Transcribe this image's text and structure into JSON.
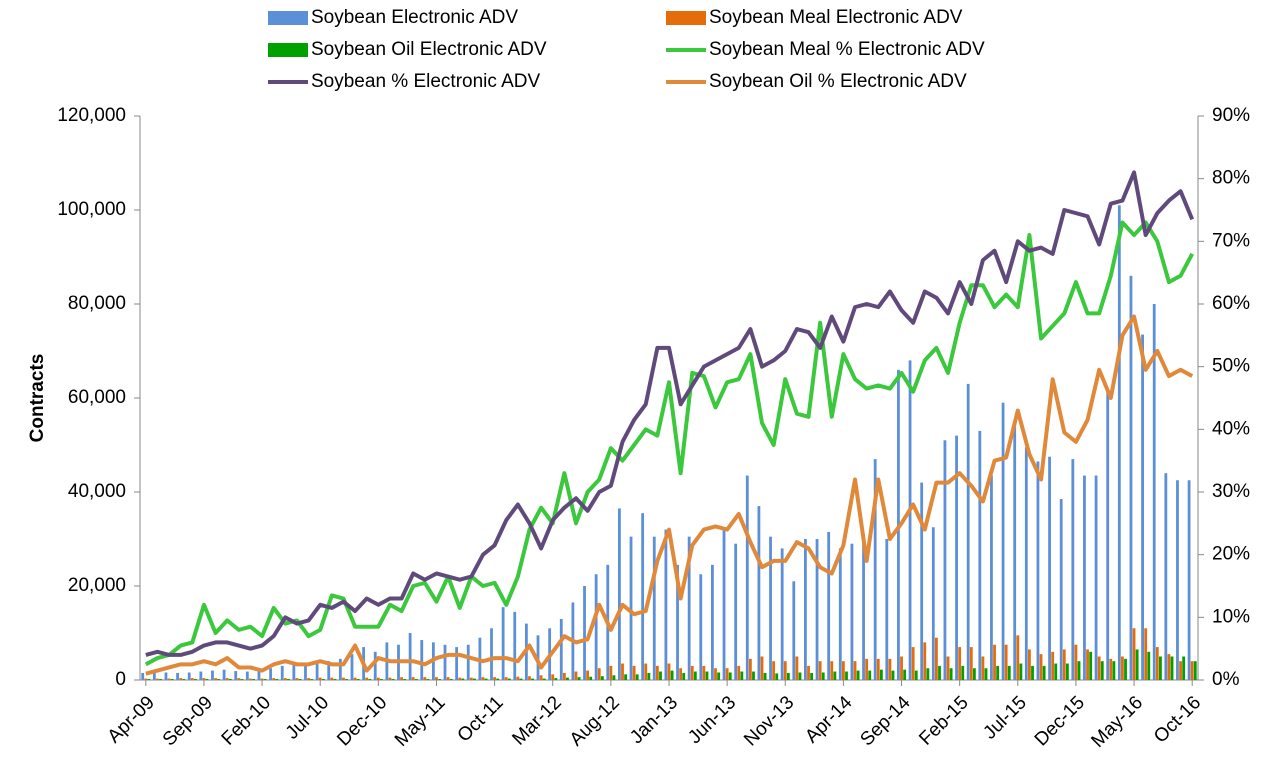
{
  "chart_data": {
    "type": "bar",
    "y_label": "Contracts",
    "categories": [
      "Apr-09",
      null,
      null,
      null,
      null,
      "Sep-09",
      null,
      null,
      null,
      null,
      "Feb-10",
      null,
      null,
      null,
      null,
      "Jul-10",
      null,
      null,
      null,
      null,
      "Dec-10",
      null,
      null,
      null,
      null,
      "May-11",
      null,
      null,
      null,
      null,
      "Oct-11",
      null,
      null,
      null,
      null,
      "Mar-12",
      null,
      null,
      null,
      null,
      "Aug-12",
      null,
      null,
      null,
      null,
      "Jan-13",
      null,
      null,
      null,
      null,
      "Jun-13",
      null,
      null,
      null,
      null,
      "Nov-13",
      null,
      null,
      null,
      null,
      "Apr-14",
      null,
      null,
      null,
      null,
      "Sep-14",
      null,
      null,
      null,
      null,
      "Feb-15",
      null,
      null,
      null,
      null,
      "Jul-15",
      null,
      null,
      null,
      null,
      "Dec-15",
      null,
      null,
      null,
      null,
      "May-16",
      null,
      null,
      null,
      null,
      "Oct-16"
    ],
    "ylim": [
      0,
      120000
    ],
    "yticks": [
      0,
      {
        "value": 20000,
        "label": "20,000"
      },
      {
        "value": 40000,
        "label": "40,000"
      },
      {
        "value": 60000,
        "label": "60,000"
      },
      {
        "value": 80000,
        "label": "80,000"
      },
      {
        "value": 100000,
        "label": "100,000"
      },
      {
        "value": 120000,
        "label": "120,000"
      }
    ],
    "y2lim": [
      0,
      90
    ],
    "y2ticks": [
      {
        "value": 0,
        "label": "0%"
      },
      {
        "value": 10,
        "label": "10%"
      },
      {
        "value": 20,
        "label": "20%"
      },
      {
        "value": 30,
        "label": "30%"
      },
      {
        "value": 40,
        "label": "40%"
      },
      {
        "value": 50,
        "label": "50%"
      },
      {
        "value": 60,
        "label": "60%"
      },
      {
        "value": 70,
        "label": "70%"
      },
      {
        "value": 80,
        "label": "80%"
      },
      {
        "value": 90,
        "label": "90%"
      }
    ],
    "series": [
      {
        "name": "Soybean Electronic ADV",
        "type": "bar",
        "color": "#5b8fd8",
        "values": [
          1500,
          1700,
          1600,
          1500,
          1600,
          1800,
          2000,
          2200,
          1900,
          1800,
          2000,
          2500,
          3000,
          3500,
          3000,
          3800,
          4000,
          4500,
          5500,
          7000,
          6000,
          8000,
          7500,
          10000,
          8500,
          8000,
          7500,
          7000,
          7500,
          9000,
          11000,
          15500,
          14500,
          12000,
          9500,
          11000,
          13000,
          16500,
          20000,
          22500,
          24500,
          36500,
          30500,
          35500,
          30500,
          32000,
          24500,
          30500,
          22500,
          24500,
          32000,
          29000,
          43500,
          37000,
          30500,
          28000,
          21000,
          30000,
          30000,
          31500,
          28000,
          29000,
          31000,
          47000,
          30000,
          66000,
          68000,
          42000,
          32500,
          51000,
          52000,
          63000,
          53000,
          43500,
          59000,
          54500,
          49500,
          46500,
          47500,
          38500,
          47000,
          43500,
          43500,
          62000,
          101000,
          86000,
          73500,
          80000,
          44000,
          42500,
          42500
        ]
      },
      {
        "name": "Soybean Meal Electronic ADV",
        "type": "bar",
        "color": "#e46c0a",
        "values": [
          300,
          300,
          300,
          400,
          400,
          400,
          400,
          400,
          400,
          300,
          300,
          400,
          400,
          400,
          400,
          500,
          500,
          500,
          500,
          500,
          500,
          500,
          600,
          600,
          600,
          600,
          600,
          500,
          500,
          600,
          600,
          600,
          700,
          800,
          1000,
          1200,
          1500,
          1800,
          2000,
          2500,
          3000,
          3500,
          3000,
          3500,
          3000,
          3500,
          2500,
          3000,
          3000,
          2500,
          2500,
          3000,
          4500,
          5000,
          4000,
          4000,
          5000,
          3000,
          4000,
          4000,
          4000,
          4000,
          4500,
          4500,
          4500,
          5000,
          7000,
          8000,
          9000,
          5000,
          7000,
          7000,
          5000,
          7500,
          7500,
          9500,
          6500,
          5500,
          6000,
          6500,
          7500,
          6500,
          5000,
          4500,
          5000,
          11000,
          11000,
          7000,
          5500,
          4000,
          4000
        ]
      },
      {
        "name": "Soybean Oil Electronic ADV",
        "type": "bar",
        "color": "#00a000",
        "values": [
          200,
          200,
          200,
          200,
          200,
          200,
          200,
          200,
          200,
          200,
          200,
          200,
          200,
          200,
          200,
          200,
          200,
          200,
          200,
          200,
          200,
          200,
          200,
          200,
          200,
          200,
          200,
          300,
          300,
          300,
          300,
          300,
          300,
          300,
          300,
          400,
          500,
          600,
          700,
          800,
          1000,
          1200,
          1200,
          1500,
          1800,
          2000,
          1500,
          1800,
          1800,
          1600,
          1600,
          1800,
          1800,
          1500,
          1400,
          1500,
          1600,
          1500,
          1600,
          1800,
          1800,
          2000,
          2000,
          2200,
          2000,
          2200,
          2000,
          2500,
          3000,
          2500,
          3000,
          2500,
          2500,
          3000,
          3000,
          3500,
          3000,
          3000,
          3500,
          3500,
          4000,
          6000,
          4000,
          4000,
          4500,
          6500,
          6000,
          5000,
          5000,
          5000,
          4000
        ]
      },
      {
        "name": "Soybean Meal % Electronic ADV",
        "type": "line",
        "axis": "y2",
        "color": "#3cc83c",
        "values": [
          2.5,
          3.5,
          4,
          5.5,
          6,
          12,
          7.5,
          9.5,
          8,
          8.5,
          7,
          11.5,
          9,
          9.5,
          7,
          8,
          13.5,
          13,
          8.5,
          8.5,
          8.5,
          12,
          11,
          15,
          15.5,
          12.5,
          16.5,
          11.5,
          16.5,
          15,
          15.5,
          12,
          16.5,
          24,
          27.5,
          25,
          33,
          25,
          30,
          32,
          37,
          35,
          37.5,
          40,
          39,
          47.5,
          33,
          49,
          48.5,
          43.5,
          47.5,
          48,
          52,
          41,
          37.5,
          48,
          42.5,
          42,
          57,
          42,
          52,
          48,
          46.5,
          47,
          46.5,
          49,
          46,
          51,
          53,
          49,
          57,
          63,
          63,
          59.5,
          61.5,
          59.5,
          71,
          54.5,
          56.5,
          58.5,
          63.5,
          58.5,
          58.5,
          64.5,
          73,
          71,
          73,
          70,
          63.5,
          64.5,
          68
        ]
      },
      {
        "name": "Soybean % Electronic ADV",
        "type": "line",
        "axis": "y2",
        "color": "#604a7b",
        "values": [
          4,
          4.5,
          4,
          4,
          4.5,
          5.5,
          6,
          6,
          5.5,
          5,
          5.5,
          7,
          10,
          9,
          9.5,
          12,
          11.5,
          12.5,
          11,
          13,
          12,
          13,
          13,
          17,
          16,
          17,
          16.5,
          16,
          16.5,
          20,
          21.5,
          25.5,
          28,
          25,
          21,
          25.5,
          27.5,
          29,
          27,
          30,
          31,
          38,
          41.5,
          44,
          53,
          53,
          44,
          47,
          50,
          51,
          52,
          53,
          56,
          50,
          51,
          52.5,
          56,
          55.5,
          53,
          58,
          54,
          59.5,
          60,
          59.5,
          62,
          59,
          57,
          62,
          61,
          58.5,
          63.5,
          60,
          67,
          68.5,
          63.5,
          70,
          68.5,
          69,
          68,
          75,
          74.5,
          74,
          69.5,
          76,
          76.5,
          81,
          71,
          74.5,
          76.5,
          78,
          73.5
        ]
      },
      {
        "name": "Soybean Oil % Electronic ADV",
        "type": "line",
        "axis": "y2",
        "color": "#e0893a",
        "values": [
          1,
          1.5,
          2,
          2.5,
          2.5,
          3,
          2.5,
          3.5,
          2,
          2,
          1.5,
          2.5,
          3,
          2.5,
          2.5,
          3,
          2.5,
          2.5,
          5.5,
          1.5,
          3.5,
          3,
          3,
          3,
          2.5,
          3.5,
          4,
          4,
          3.5,
          3,
          3.5,
          3.5,
          3,
          5.5,
          2,
          4.5,
          7,
          6,
          6.5,
          12,
          8,
          12,
          10.5,
          11,
          19,
          24,
          13,
          21.5,
          24,
          24.5,
          24,
          26.5,
          22,
          18,
          19,
          19,
          22,
          21,
          18,
          17,
          21.5,
          32,
          19,
          32,
          22.5,
          25,
          28,
          24,
          31.5,
          31.5,
          33,
          31,
          28.5,
          35,
          35.5,
          43,
          36,
          32,
          48,
          39.5,
          38,
          41.5,
          49.5,
          45,
          55,
          58,
          49.5,
          52.5,
          48.5,
          49.5,
          48.5
        ]
      }
    ]
  }
}
